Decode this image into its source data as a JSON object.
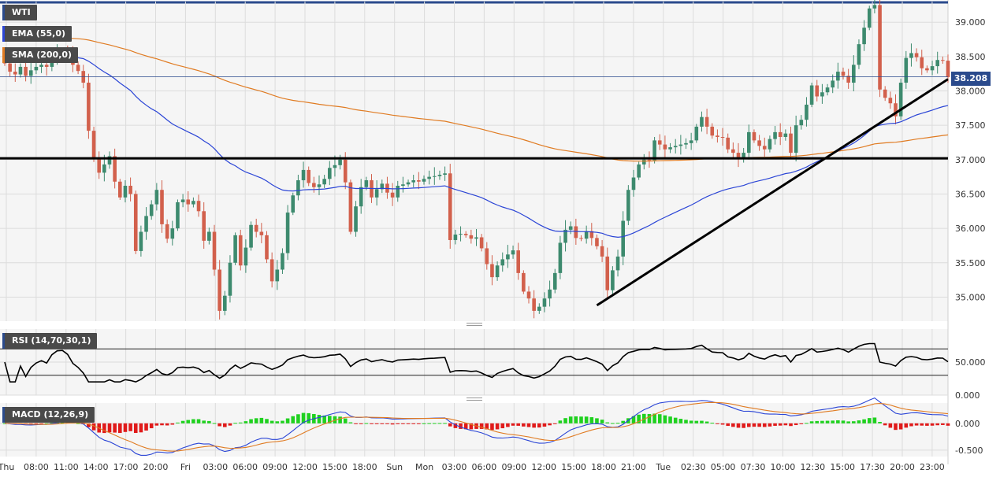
{
  "instrument": "WTI",
  "indicators": {
    "ema_label": "EMA (55,0)",
    "sma_label": "SMA (200,0)",
    "rsi_label": "RSI (14,70,30,1)",
    "macd_label": "MACD (12,26,9)"
  },
  "colors": {
    "up": "#3d8a6e",
    "down": "#d2604c",
    "ema": "#2b45d6",
    "sma": "#e07b22",
    "macd_pos": "#1fd11f",
    "macd_neg": "#e01a1a",
    "grid": "#dcdcdc",
    "panel_bg": "#f5f5f5",
    "tag_bg": "#4a4a4a",
    "last_price_bg": "#2a4a8c"
  },
  "last_price": "38.208",
  "chart_data": [
    {
      "type": "candlestick",
      "title": "WTI",
      "ylim": [
        34.65,
        39.3
      ],
      "y_ticks": [
        "39.000",
        "38.500",
        "38.000",
        "37.500",
        "37.000",
        "36.500",
        "36.000",
        "35.500",
        "35.000"
      ],
      "x_tick_labels": [
        "Thu",
        "08:00",
        "11:00",
        "14:00",
        "17:00",
        "20:00",
        "Fri",
        "03:00",
        "06:00",
        "09:00",
        "12:00",
        "15:00",
        "18:00",
        "Sun",
        "Mon",
        "03:00",
        "06:00",
        "09:00",
        "12:00",
        "15:00",
        "18:00",
        "21:00",
        "Tue",
        "02:30",
        "05:00",
        "07:30",
        "10:00",
        "12:30",
        "15:00",
        "17:30",
        "20:00",
        "23:00"
      ],
      "closes": [
        38.4,
        38.28,
        38.24,
        38.35,
        38.22,
        38.3,
        38.35,
        38.38,
        38.35,
        38.48,
        38.57,
        38.58,
        38.53,
        38.38,
        38.29,
        38.12,
        37.42,
        37.02,
        36.81,
        36.93,
        37.05,
        36.68,
        36.45,
        36.62,
        36.5,
        35.67,
        35.95,
        36.18,
        36.35,
        36.56,
        36.06,
        35.85,
        36.0,
        36.38,
        36.42,
        36.35,
        36.4,
        36.25,
        35.82,
        35.95,
        35.4,
        34.8,
        35.02,
        35.5,
        35.9,
        35.46,
        35.72,
        36.05,
        35.95,
        35.9,
        35.55,
        35.23,
        35.4,
        35.64,
        36.23,
        36.48,
        36.7,
        36.85,
        36.66,
        36.6,
        36.64,
        36.72,
        36.88,
        36.92,
        37.0,
        36.67,
        35.95,
        36.32,
        36.6,
        36.7,
        36.45,
        36.57,
        36.65,
        36.52,
        36.45,
        36.62,
        36.64,
        36.67,
        36.7,
        36.68,
        36.72,
        36.75,
        36.76,
        36.78,
        36.8,
        35.83,
        35.91,
        35.92,
        35.9,
        35.85,
        35.87,
        35.71,
        35.48,
        35.29,
        35.46,
        35.55,
        35.62,
        35.68,
        35.35,
        35.08,
        34.98,
        34.8,
        34.86,
        34.98,
        35.11,
        35.35,
        35.79,
        35.98,
        36.03,
        35.86,
        35.85,
        35.96,
        35.86,
        35.74,
        35.59,
        35.1,
        35.39,
        35.59,
        36.11,
        36.56,
        36.74,
        36.93,
        37.0,
        36.99,
        37.28,
        37.22,
        37.15,
        37.18,
        37.2,
        37.22,
        37.24,
        37.28,
        37.48,
        37.62,
        37.48,
        37.35,
        37.33,
        37.32,
        37.15,
        37.1,
        37.02,
        37.1,
        37.4,
        37.28,
        37.2,
        37.15,
        37.3,
        37.4,
        37.33,
        37.38,
        37.1,
        37.5,
        37.58,
        37.8,
        38.08,
        37.92,
        37.98,
        38.05,
        38.15,
        38.28,
        38.22,
        38.12,
        38.38,
        38.68,
        38.92,
        39.2,
        39.25,
        38.02,
        37.9,
        37.82,
        37.63,
        38.12,
        38.48,
        38.55,
        38.49,
        38.33,
        38.3,
        38.36,
        38.45,
        38.44,
        38.2
      ]
    },
    {
      "type": "line",
      "title": "RSI (14,70,30,1)",
      "ylim": [
        0,
        100
      ],
      "levels": [
        70,
        30
      ],
      "y_ticks": [
        "50.000",
        "0.000"
      ]
    },
    {
      "type": "bar",
      "title": "MACD (12,26,9)",
      "ylim": [
        -0.62,
        0.38
      ],
      "y_ticks": [
        "0.000",
        "-0.500"
      ]
    }
  ]
}
